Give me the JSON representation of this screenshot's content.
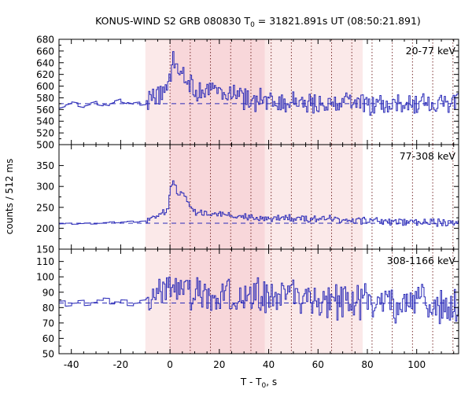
{
  "chart_data": {
    "type": "line",
    "title": "KONUS-WIND S2 GRB 080830 T",
    "title_sub": "0",
    "title_rest": " = 31821.891s UT (08:50:21.891)",
    "ylabel": "counts / 512 ms",
    "xlabel_main": "T - T",
    "xlabel_sub": "0",
    "xlabel_rest": ", s",
    "xlim": [
      -45,
      117
    ],
    "x_ticks": [
      -40,
      -20,
      0,
      20,
      40,
      60,
      80,
      100
    ],
    "shaded_regions": [
      {
        "x0": -10,
        "x1": 78.1,
        "color": "#fbe9e9"
      },
      {
        "x0": 0,
        "x1": 38.4,
        "color": "#f8d7da"
      }
    ],
    "dotted_lines": [
      0,
      8.2,
      16.4,
      24.6,
      32.8,
      41.0,
      49.2,
      57.3,
      65.5,
      73.7,
      81.9,
      90.1,
      98.3,
      106.5,
      114.7
    ],
    "panels": [
      {
        "label": "20-77 keV",
        "ylim": [
          500,
          680
        ],
        "y_ticks": [
          500,
          520,
          540,
          560,
          580,
          600,
          620,
          640,
          660,
          680
        ],
        "background": 570,
        "step": 0.512,
        "series": [
          {
            "x": -45,
            "y": 564
          },
          {
            "x": -40,
            "y": 570
          },
          {
            "x": -35,
            "y": 566
          },
          {
            "x": -30,
            "y": 572
          },
          {
            "x": -25,
            "y": 568
          },
          {
            "x": -20,
            "y": 575
          },
          {
            "x": -15,
            "y": 569
          },
          {
            "x": -10,
            "y": 572
          },
          {
            "x": -7,
            "y": 580
          },
          {
            "x": -4,
            "y": 590
          },
          {
            "x": 0,
            "y": 620
          },
          {
            "x": 1,
            "y": 650
          },
          {
            "x": 3,
            "y": 630
          },
          {
            "x": 6,
            "y": 615
          },
          {
            "x": 10,
            "y": 595
          },
          {
            "x": 20,
            "y": 590
          },
          {
            "x": 30,
            "y": 580
          },
          {
            "x": 40,
            "y": 575
          },
          {
            "x": 60,
            "y": 572
          },
          {
            "x": 80,
            "y": 570
          },
          {
            "x": 100,
            "y": 570
          },
          {
            "x": 117,
            "y": 575
          }
        ],
        "noise": 16
      },
      {
        "label": "77-308 keV",
        "ylim": [
          150,
          400
        ],
        "y_ticks": [
          150,
          200,
          250,
          300,
          350
        ],
        "background": 212,
        "step": 0.512,
        "series": [
          {
            "x": -45,
            "y": 210
          },
          {
            "x": -30,
            "y": 212
          },
          {
            "x": -15,
            "y": 216
          },
          {
            "x": -10,
            "y": 218
          },
          {
            "x": -5,
            "y": 232
          },
          {
            "x": -1,
            "y": 245
          },
          {
            "x": 0,
            "y": 300
          },
          {
            "x": 1,
            "y": 315
          },
          {
            "x": 3,
            "y": 275
          },
          {
            "x": 5,
            "y": 290
          },
          {
            "x": 7,
            "y": 258
          },
          {
            "x": 10,
            "y": 240
          },
          {
            "x": 20,
            "y": 232
          },
          {
            "x": 30,
            "y": 228
          },
          {
            "x": 40,
            "y": 222
          },
          {
            "x": 60,
            "y": 224
          },
          {
            "x": 80,
            "y": 218
          },
          {
            "x": 100,
            "y": 216
          },
          {
            "x": 117,
            "y": 214
          }
        ],
        "noise": 8
      },
      {
        "label": "308-1166 keV",
        "ylim": [
          50,
          118
        ],
        "y_ticks": [
          50,
          60,
          70,
          80,
          90,
          100,
          110
        ],
        "background": 83,
        "step": 0.512,
        "series": [
          {
            "x": -45,
            "y": 82
          },
          {
            "x": -30,
            "y": 84
          },
          {
            "x": -15,
            "y": 83
          },
          {
            "x": -10,
            "y": 84
          },
          {
            "x": 0,
            "y": 92
          },
          {
            "x": 5,
            "y": 90
          },
          {
            "x": 20,
            "y": 88
          },
          {
            "x": 40,
            "y": 86
          },
          {
            "x": 60,
            "y": 85
          },
          {
            "x": 80,
            "y": 84
          },
          {
            "x": 100,
            "y": 83
          },
          {
            "x": 117,
            "y": 82
          }
        ],
        "noise": 10
      }
    ]
  },
  "colors": {
    "series": "#2b2bb8",
    "dotted": "#7a3030",
    "axis": "#000000"
  }
}
